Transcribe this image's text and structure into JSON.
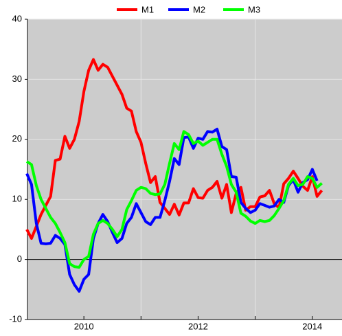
{
  "chart_data": {
    "type": "line",
    "x": [
      2009,
      2009.083,
      2009.167,
      2009.25,
      2009.333,
      2009.417,
      2009.5,
      2009.583,
      2009.667,
      2009.75,
      2009.833,
      2009.917,
      2010,
      2010.083,
      2010.167,
      2010.25,
      2010.333,
      2010.417,
      2010.5,
      2010.583,
      2010.667,
      2010.75,
      2010.833,
      2010.917,
      2011,
      2011.083,
      2011.167,
      2011.25,
      2011.333,
      2011.417,
      2011.5,
      2011.583,
      2011.667,
      2011.75,
      2011.833,
      2011.917,
      2012,
      2012.083,
      2012.167,
      2012.25,
      2012.333,
      2012.417,
      2012.5,
      2012.583,
      2012.667,
      2012.75,
      2012.833,
      2012.917,
      2013,
      2013.083,
      2013.167,
      2013.25,
      2013.333,
      2013.417,
      2013.5,
      2013.583,
      2013.667,
      2013.75,
      2013.833,
      2013.917,
      2014,
      2014.083,
      2014.167
    ],
    "series": [
      {
        "name": "M1",
        "color": "#ff0000",
        "values": [
          5,
          3.5,
          5.5,
          7.5,
          9,
          10.5,
          16.5,
          16.7,
          20.5,
          18.5,
          20,
          23,
          28,
          31.5,
          33.3,
          31.5,
          32.5,
          32,
          30.5,
          29,
          27.5,
          25.2,
          24.7,
          21.3,
          19.5,
          16,
          12.8,
          13.8,
          9.5,
          8.5,
          7.5,
          9.2,
          7.4,
          9.4,
          9.4,
          11.8,
          10.3,
          10.2,
          11.5,
          12,
          13,
          10.2,
          12.5,
          7.8,
          11,
          12,
          8.2,
          8.8,
          8.8,
          10.4,
          10.6,
          11.5,
          9.3,
          8.6,
          12.6,
          13.5,
          14.7,
          13.5,
          12.2,
          11.5,
          13.8,
          10.5,
          11.5
        ]
      },
      {
        "name": "M2",
        "color": "#0000ff",
        "values": [
          14.3,
          12.5,
          6,
          2.7,
          2.6,
          2.7,
          4,
          3.5,
          2.5,
          -2.5,
          -4.2,
          -5.3,
          -3.3,
          -2.5,
          3.5,
          6,
          7.5,
          6.3,
          4.5,
          2.8,
          3.5,
          6,
          7,
          9.3,
          7.8,
          6.3,
          5.8,
          7,
          7,
          9.8,
          13,
          16.8,
          15.8,
          20.3,
          20.4,
          18.5,
          20.2,
          20,
          21.3,
          21.2,
          21.7,
          18.8,
          18.3,
          13.8,
          13.7,
          9.5,
          8.5,
          7.8,
          8.2,
          9.3,
          9,
          8.7,
          8.9,
          10,
          9.5,
          12.3,
          13.3,
          11.2,
          12.8,
          13.3,
          15,
          13.1,
          null
        ]
      },
      {
        "name": "M3",
        "color": "#00ff00",
        "values": [
          16.3,
          15.8,
          12.3,
          10,
          8.5,
          7,
          6,
          4.5,
          2.8,
          -0.7,
          -1.2,
          -1.3,
          0,
          0.5,
          4.2,
          6,
          6.5,
          6,
          5,
          3.8,
          5,
          8.3,
          9.8,
          11.5,
          12,
          11.8,
          11,
          10.8,
          10.9,
          12.5,
          16,
          19.3,
          18.3,
          21.3,
          20.8,
          19.3,
          19.7,
          19,
          19.5,
          20,
          20,
          17.5,
          15.5,
          12.5,
          11.2,
          7.7,
          7.2,
          6.4,
          6,
          6.5,
          6.3,
          6.5,
          7.3,
          8.5,
          9.8,
          12.5,
          13.5,
          12.3,
          12.5,
          13.8,
          13.5,
          12,
          12.7
        ]
      }
    ],
    "xlim": [
      2009,
      2014.52
    ],
    "xticks": [
      2010,
      2012,
      2014
    ],
    "xgrid": [
      2011,
      2013
    ],
    "ylim": [
      -10,
      40
    ],
    "yticks": [
      -10,
      0,
      10,
      20,
      30,
      40
    ],
    "grid": true,
    "legend": "top"
  }
}
